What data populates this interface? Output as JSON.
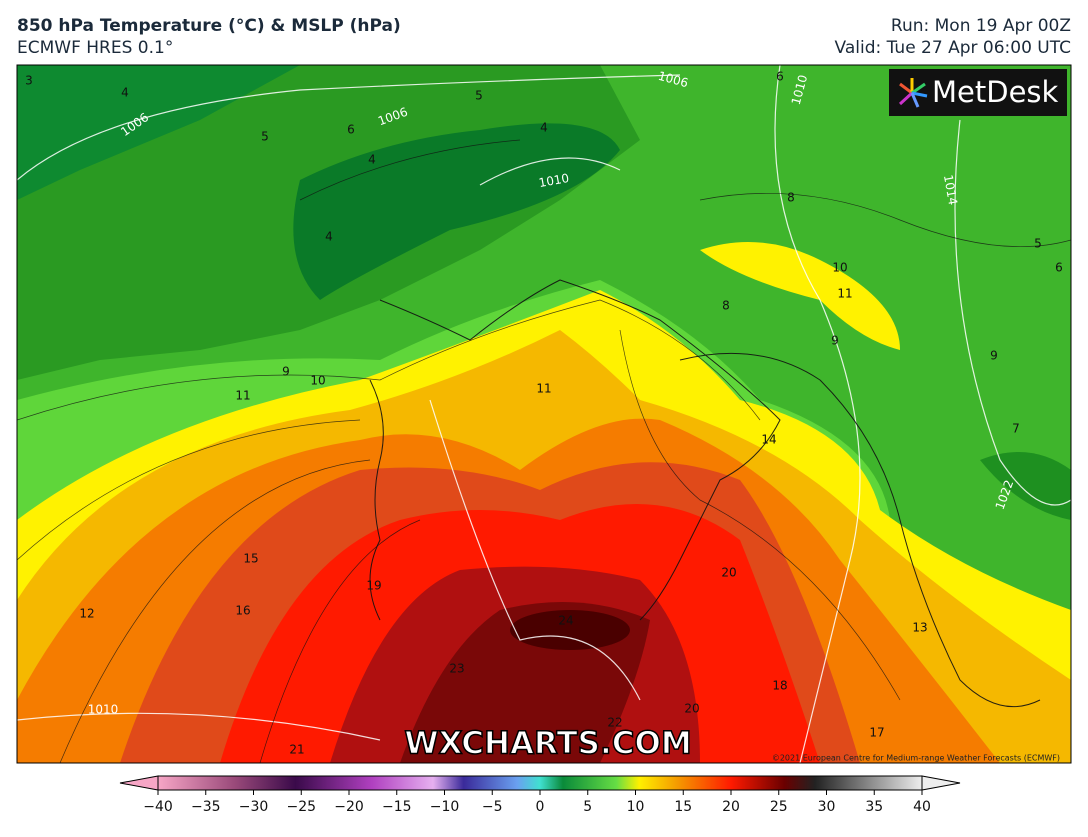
{
  "header": {
    "title": "850 hPa Temperature (°C) & MSLP (hPa)",
    "model": "ECMWF HRES 0.1°",
    "run": "Run: Mon 19 Apr 00Z",
    "valid": "Valid: Tue 27 Apr 06:00 UTC"
  },
  "logo": "MetDesk",
  "watermark": "WXCHARTS.COM",
  "copyright": "©2021 European Centre for Medium-range Weather Forecasts (ECMWF)",
  "map": {
    "contour_labels": [
      "3",
      "4",
      "1006",
      "5",
      "6",
      "1006",
      "5",
      "4",
      "1010",
      "4",
      "4",
      "1006",
      "6",
      "1010",
      "1014",
      "8",
      "5",
      "6",
      "10",
      "11",
      "8",
      "9",
      "9",
      "9",
      "10",
      "11",
      "11",
      "14",
      "7",
      "1022",
      "15",
      "16",
      "12",
      "19",
      "20",
      "24",
      "13",
      "23",
      "18",
      "1010",
      "20",
      "22",
      "17",
      "21"
    ]
  },
  "colorbar": {
    "ticks": [
      "−40",
      "−35",
      "−30",
      "−25",
      "−20",
      "−15",
      "−10",
      "−5",
      "0",
      "5",
      "10",
      "15",
      "20",
      "25",
      "30",
      "35",
      "40"
    ]
  }
}
